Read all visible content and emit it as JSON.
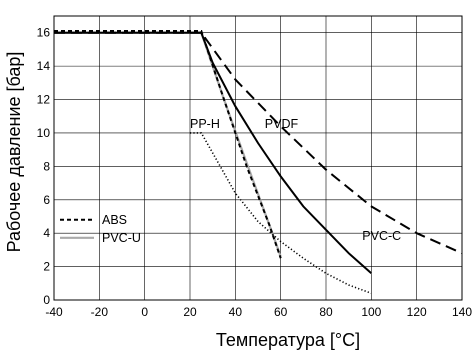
{
  "chart_data": {
    "type": "line",
    "xlabel": "Температура [°C]",
    "ylabel": "Рабочее давление [бар]",
    "xlim": [
      -40,
      140
    ],
    "ylim": [
      0,
      17
    ],
    "x_ticks": [
      -40,
      -20,
      0,
      20,
      40,
      60,
      80,
      100,
      120,
      140
    ],
    "y_ticks": [
      0,
      2,
      4,
      6,
      8,
      10,
      12,
      14,
      16
    ],
    "grid": true,
    "legend_position": "bottom-left",
    "legend": [
      {
        "label": "ABS",
        "series": "ABS"
      },
      {
        "label": "PVC-U",
        "series": "PVC-U"
      }
    ],
    "series": [
      {
        "name": "ABS",
        "style": "short-dash",
        "color": "#000000",
        "points": [
          [
            -40,
            16.1
          ],
          [
            0,
            16.1
          ],
          [
            25,
            16.1
          ],
          [
            35,
            12
          ],
          [
            45,
            8
          ],
          [
            55,
            4.5
          ],
          [
            60,
            2.5
          ]
        ]
      },
      {
        "name": "PVC-U",
        "style": "solid",
        "color": "#aaaaaa",
        "points": [
          [
            -40,
            16
          ],
          [
            0,
            16
          ],
          [
            25,
            16
          ],
          [
            35,
            12
          ],
          [
            45,
            8.2
          ],
          [
            55,
            4.5
          ],
          [
            60,
            2.6
          ]
        ]
      },
      {
        "name": "PP-H",
        "style": "dotted",
        "color": "#000000",
        "points": [
          [
            20,
            10
          ],
          [
            25,
            10
          ],
          [
            30,
            8.8
          ],
          [
            40,
            6.4
          ],
          [
            50,
            4.7
          ],
          [
            60,
            3.5
          ],
          [
            70,
            2.5
          ],
          [
            80,
            1.6
          ],
          [
            90,
            0.9
          ],
          [
            100,
            0.4
          ]
        ]
      },
      {
        "name": "PVC-C",
        "style": "solid",
        "color": "#000000",
        "points": [
          [
            -40,
            16
          ],
          [
            0,
            16
          ],
          [
            25,
            16
          ],
          [
            30,
            14.2
          ],
          [
            40,
            11.6
          ],
          [
            50,
            9.4
          ],
          [
            60,
            7.4
          ],
          [
            70,
            5.6
          ],
          [
            80,
            4.2
          ],
          [
            90,
            2.8
          ],
          [
            100,
            1.6
          ]
        ]
      },
      {
        "name": "PVDF",
        "style": "long-dash",
        "color": "#000000",
        "points": [
          [
            -40,
            16
          ],
          [
            0,
            16
          ],
          [
            25,
            16
          ],
          [
            40,
            13.2
          ],
          [
            60,
            10.4
          ],
          [
            80,
            7.8
          ],
          [
            100,
            5.6
          ],
          [
            120,
            4
          ],
          [
            140,
            2.8
          ]
        ]
      }
    ],
    "annotations": [
      {
        "text": "PP-H",
        "x": 20,
        "y": 10.3
      },
      {
        "text": "PVDF",
        "x": 53,
        "y": 10.3
      },
      {
        "text": "PVC-C",
        "x": 96,
        "y": 3.6
      }
    ]
  }
}
